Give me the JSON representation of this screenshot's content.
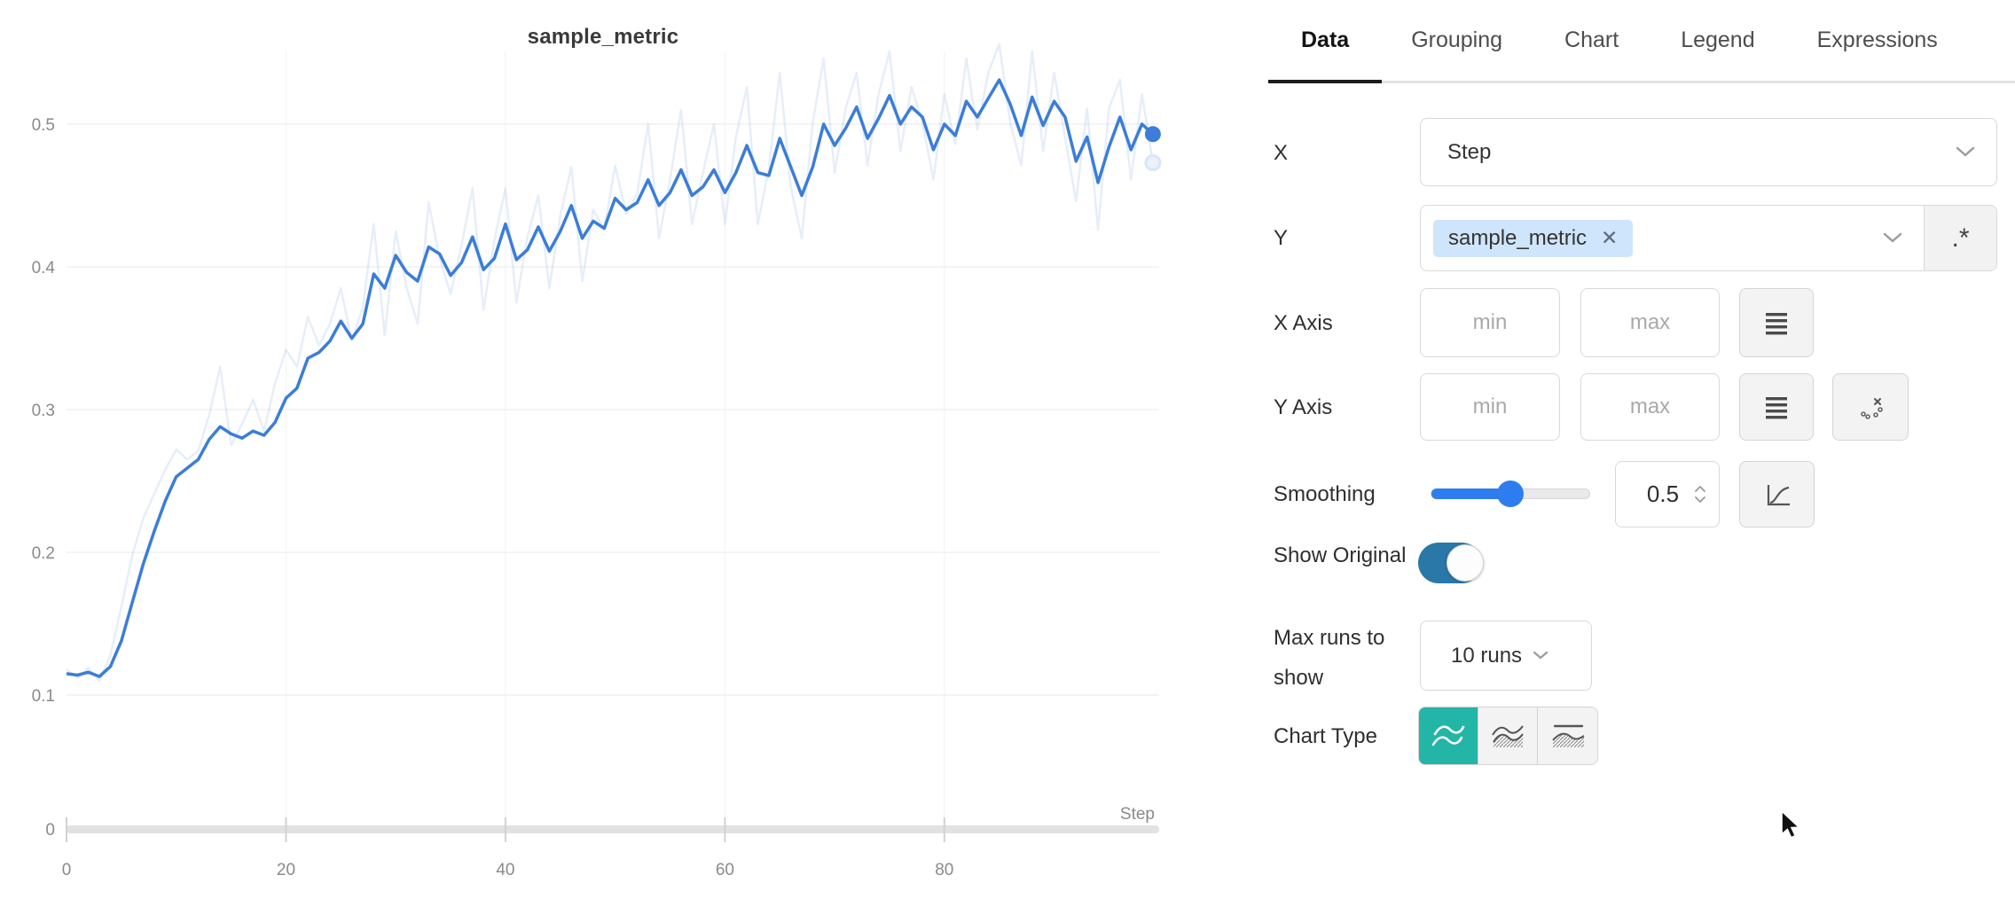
{
  "chart_data": {
    "type": "line",
    "title": "sample_metric",
    "xlabel": "Step",
    "ylabel": "",
    "x_start": 0,
    "x_step": 1,
    "x_ticks": [
      0,
      20,
      40,
      60,
      80
    ],
    "y_ticks": [
      0,
      0.1,
      0.2,
      0.3,
      0.4,
      0.5
    ],
    "xlim": [
      0,
      99
    ],
    "ylim": [
      0,
      0.56
    ],
    "grid": true,
    "legend_position": "none",
    "series": [
      {
        "name": "sample_metric (original)",
        "role": "original",
        "color": "#3b7dd8",
        "opacity": 0.13,
        "values": [
          0.118,
          0.112,
          0.119,
          0.11,
          0.128,
          0.162,
          0.198,
          0.224,
          0.241,
          0.258,
          0.272,
          0.265,
          0.271,
          0.296,
          0.33,
          0.275,
          0.29,
          0.307,
          0.285,
          0.318,
          0.342,
          0.33,
          0.365,
          0.345,
          0.36,
          0.385,
          0.348,
          0.372,
          0.43,
          0.352,
          0.425,
          0.385,
          0.36,
          0.445,
          0.406,
          0.381,
          0.415,
          0.455,
          0.37,
          0.419,
          0.455,
          0.375,
          0.421,
          0.45,
          0.385,
          0.436,
          0.47,
          0.39,
          0.44,
          0.426,
          0.471,
          0.437,
          0.451,
          0.5,
          0.42,
          0.461,
          0.51,
          0.43,
          0.466,
          0.5,
          0.43,
          0.491,
          0.526,
          0.43,
          0.469,
          0.536,
          0.456,
          0.42,
          0.501,
          0.546,
          0.466,
          0.511,
          0.536,
          0.471,
          0.521,
          0.551,
          0.481,
          0.526,
          0.501,
          0.461,
          0.521,
          0.486,
          0.546,
          0.496,
          0.536,
          0.556,
          0.501,
          0.471,
          0.551,
          0.481,
          0.536,
          0.491,
          0.446,
          0.511,
          0.426,
          0.511,
          0.531,
          0.461,
          0.521,
          0.473
        ]
      },
      {
        "name": "sample_metric (smoothed 0.5)",
        "role": "smoothed",
        "color": "#3b7dd8",
        "opacity": 1,
        "values": [
          0.115,
          0.114,
          0.116,
          0.113,
          0.12,
          0.138,
          0.165,
          0.192,
          0.215,
          0.236,
          0.253,
          0.259,
          0.265,
          0.279,
          0.288,
          0.283,
          0.28,
          0.285,
          0.282,
          0.291,
          0.308,
          0.315,
          0.336,
          0.34,
          0.348,
          0.362,
          0.35,
          0.36,
          0.395,
          0.385,
          0.408,
          0.396,
          0.39,
          0.414,
          0.409,
          0.394,
          0.403,
          0.421,
          0.398,
          0.406,
          0.43,
          0.405,
          0.412,
          0.428,
          0.411,
          0.425,
          0.443,
          0.42,
          0.432,
          0.427,
          0.448,
          0.44,
          0.445,
          0.461,
          0.443,
          0.452,
          0.468,
          0.45,
          0.456,
          0.468,
          0.452,
          0.466,
          0.485,
          0.466,
          0.464,
          0.49,
          0.47,
          0.45,
          0.47,
          0.5,
          0.485,
          0.497,
          0.512,
          0.49,
          0.504,
          0.52,
          0.5,
          0.512,
          0.505,
          0.482,
          0.5,
          0.492,
          0.516,
          0.505,
          0.518,
          0.531,
          0.514,
          0.492,
          0.519,
          0.499,
          0.516,
          0.505,
          0.474,
          0.491,
          0.459,
          0.484,
          0.505,
          0.482,
          0.5,
          0.493
        ]
      }
    ],
    "end_markers": {
      "smoothed_last": 0.493,
      "original_last": 0.473,
      "step_last": 99
    }
  },
  "panel": {
    "tabs": [
      "Data",
      "Grouping",
      "Chart",
      "Legend",
      "Expressions"
    ],
    "active_tab": "Data",
    "rows": {
      "x": {
        "label": "X",
        "value": "Step"
      },
      "y": {
        "label": "Y",
        "tag": "sample_metric",
        "remove_icon": "✕",
        "regex_button": ".*"
      },
      "x_axis": {
        "label": "X Axis",
        "min_placeholder": "min",
        "max_placeholder": "max"
      },
      "y_axis": {
        "label": "Y Axis",
        "min_placeholder": "min",
        "max_placeholder": "max"
      },
      "smoothing": {
        "label": "Smoothing",
        "value": "0.5",
        "fraction": 0.5
      },
      "show_original": {
        "label": "Show Original",
        "enabled": true
      },
      "max_runs": {
        "label": "Max runs to show",
        "value": "10 runs"
      },
      "chart_type": {
        "label": "Chart Type",
        "options": [
          "line",
          "area-minmax",
          "area-stddev"
        ],
        "selected": "line"
      }
    },
    "colors": {
      "accent_line": "#3b7dd8",
      "slider_blue": "#2e7df0",
      "toggle_on": "#2a78a8",
      "chart_type_active": "#23b5a6",
      "tag_background": "#cfe5fb",
      "tab_underline": "#1c1c1c"
    }
  }
}
